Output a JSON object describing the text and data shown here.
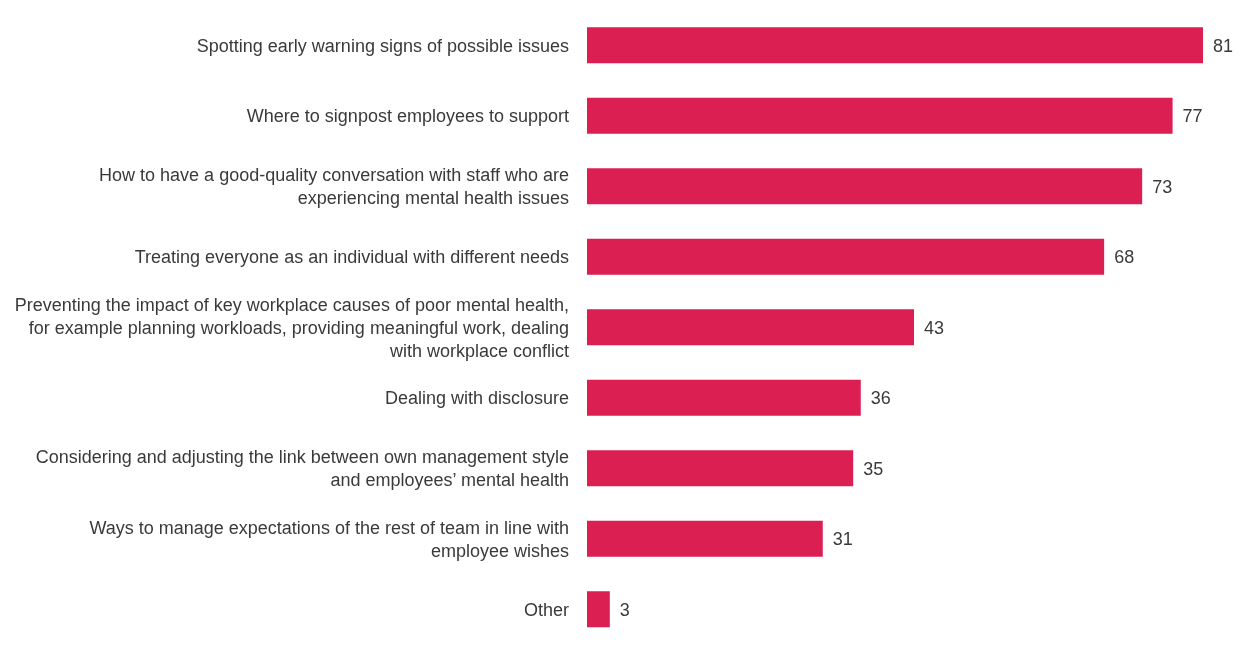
{
  "chart_data": {
    "type": "bar",
    "orientation": "horizontal",
    "data_labels": true,
    "color": "#db1f52",
    "categories": [
      "Spotting early warning signs of possible issues",
      "Where to signpost employees to support",
      "How to have a good-quality conversation with staff who are experiencing mental health issues",
      "Treating everyone as an individual with different needs",
      "Preventing the impact of key workplace causes of poor mental health, for example planning workloads, providing meaningful work, dealing with workplace conflict",
      "Dealing with disclosure",
      "Considering and adjusting the link between own management style and employees’ mental health",
      "Ways to manage expectations of the rest of team in line with employee wishes",
      "Other"
    ],
    "values": [
      81,
      77,
      73,
      68,
      43,
      36,
      35,
      31,
      3
    ]
  }
}
